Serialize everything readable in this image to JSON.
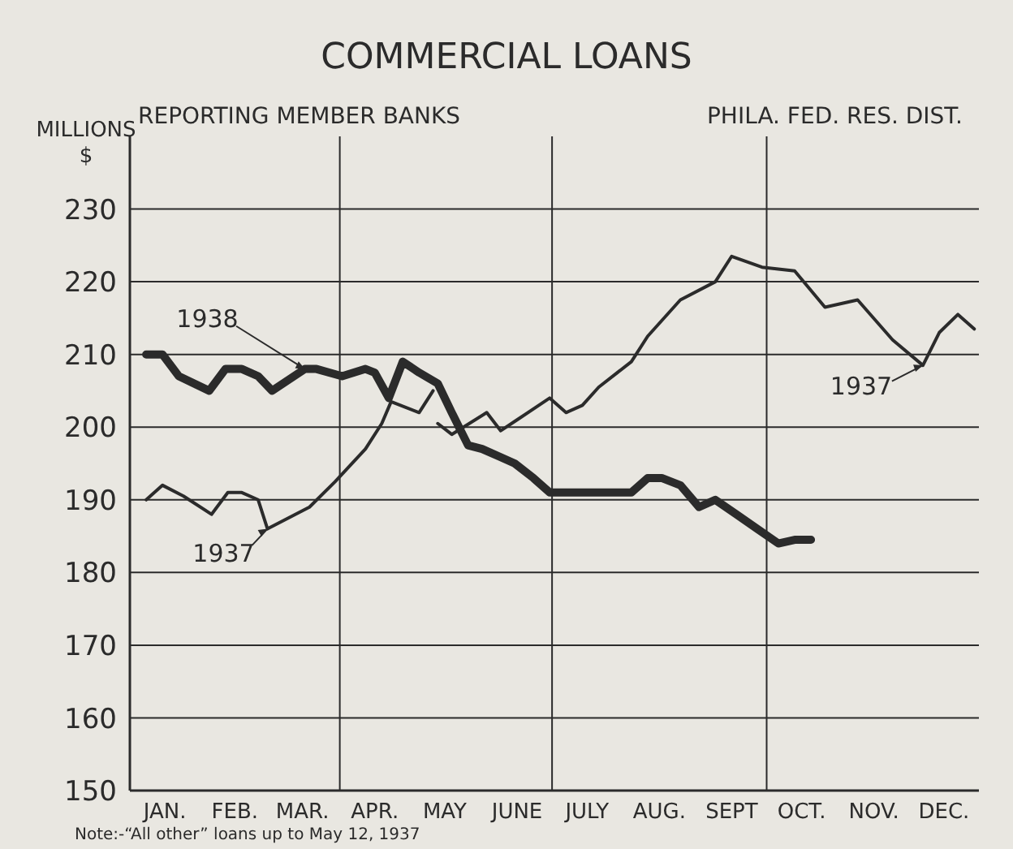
{
  "chart_data": {
    "type": "line",
    "title": "COMMERCIAL LOANS",
    "subtitle": "REPORTING MEMBER BANKS",
    "ylabel": "MILLIONS $",
    "annotations": [
      "PHILA. FED. RES. DIST.",
      {
        "text": "1938",
        "x": "--03-17",
        "y": 208
      },
      {
        "text": "1937",
        "x": "--03-01",
        "y": 186
      },
      {
        "text": "1937",
        "x": "--12-07",
        "y": 208.5
      },
      "Note:-“All other” loans up to May 12, 1937"
    ],
    "xlim": [
      "--01-01",
      "--12-31"
    ],
    "xticks": [
      {
        "value": "--01-16",
        "label": "JAN."
      },
      {
        "value": "--02-15",
        "label": "FEB."
      },
      {
        "value": "--03-16",
        "label": "MAR."
      },
      {
        "value": "--04-16",
        "label": "APR."
      },
      {
        "value": "--05-16",
        "label": "MAY"
      },
      {
        "value": "--06-16",
        "label": "JUNE"
      },
      {
        "value": "--07-16",
        "label": "JULY"
      },
      {
        "value": "--08-16",
        "label": "AUG."
      },
      {
        "value": "--09-16",
        "label": "SEPT"
      },
      {
        "value": "--10-16",
        "label": "OCT."
      },
      {
        "value": "--11-16",
        "label": "NOV."
      },
      {
        "value": "--12-16",
        "label": "DEC."
      },
      {
        "value": "--04-01",
        "label": null
      },
      {
        "value": "--07-01",
        "label": null
      },
      {
        "value": "--10-01",
        "label": null
      }
    ],
    "ylim": [
      150,
      240
    ],
    "yticks": [
      150,
      160,
      170,
      180,
      190,
      200,
      210,
      220,
      230
    ],
    "grid": true,
    "marker": "none",
    "line_style": "solid",
    "series": [
      {
        "color": "#2b2b2b",
        "x": [
          "--01-08",
          "--01-15",
          "--01-22",
          "--02-04",
          "--02-11",
          "--02-18",
          "--02-25",
          "--03-03",
          "--03-17",
          "--03-22",
          "--04-02",
          "--04-12",
          "--04-16",
          "--04-22",
          "--04-28",
          "--05-05",
          "--05-13",
          "--05-19",
          "--05-26",
          "--06-01",
          "--06-08",
          "--06-15",
          "--06-23",
          "--06-30",
          "--08-04",
          "--08-11",
          "--08-17",
          "--08-25",
          "--09-02",
          "--09-09",
          "--09-18",
          "--09-27",
          "--10-06",
          "--10-13",
          "--10-20"
        ],
        "values": [
          210,
          210,
          207,
          205,
          208,
          208,
          207,
          205,
          208,
          208,
          207,
          208,
          207.5,
          204,
          209,
          207.5,
          206,
          202,
          197.5,
          197,
          196,
          195,
          193,
          191,
          191,
          193,
          193,
          192,
          189,
          190,
          188,
          186,
          184,
          184.5,
          184.5
        ]
      },
      {
        "color": "#2b2b2b",
        "x": [
          "--01-08",
          "--01-15",
          "--01-24",
          "--02-05",
          "--02-12",
          "--02-18",
          "--02-25",
          "--03-01",
          "--03-19",
          "--03-30",
          "--04-12",
          "--04-19",
          "--04-23",
          "--05-05",
          "--05-11",
          "--05-12",
          "--05-13",
          "--05-19",
          "--06-03",
          "--06-09",
          "--06-16",
          "--06-30",
          "--07-07",
          "--07-14",
          "--07-21",
          "--08-04",
          "--08-11",
          "--08-25",
          "--09-09",
          "--09-16",
          "--09-29",
          "--10-13",
          "--10-26",
          "--11-09",
          "--11-24",
          "--12-07",
          "--12-14",
          "--12-22",
          "--12-29"
        ],
        "values": [
          190,
          192,
          190.5,
          188,
          191,
          191,
          190,
          186,
          189,
          192.5,
          197,
          200.5,
          203.5,
          202,
          205,
          null,
          200.5,
          199,
          202,
          199.5,
          201,
          204,
          202,
          203,
          205.5,
          209,
          212.5,
          217.5,
          220,
          223.5,
          222,
          221.5,
          216.5,
          217.5,
          212,
          208.5,
          213,
          215.5,
          213.5
        ]
      }
    ]
  }
}
